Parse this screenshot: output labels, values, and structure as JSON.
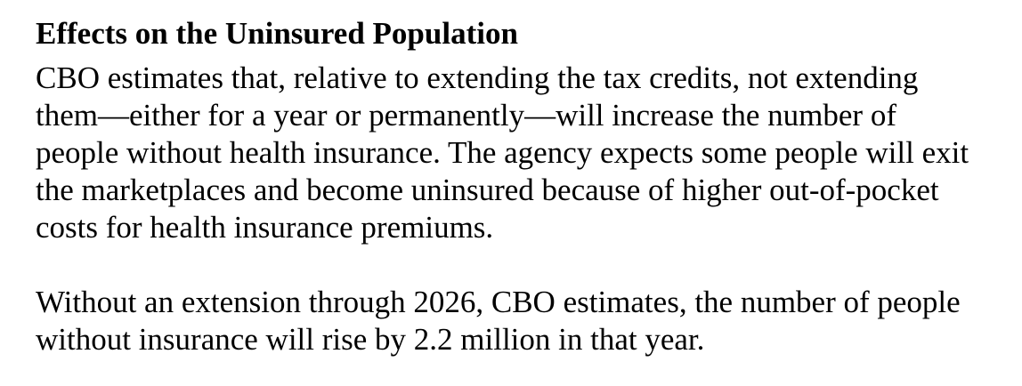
{
  "page": {
    "background_color": "#ffffff",
    "text_color": "#000000"
  },
  "document": {
    "heading": "Effects on the Uninsured Population",
    "paragraphs": [
      {
        "lines": [
          "CBO estimates that, relative to extending the tax credits, not extending",
          "them—either for a year or permanently—will increase the number of",
          "people without health insurance. The agency expects some people will exit",
          "the marketplaces and become uninsured because of higher out-of-pocket",
          "costs for health insurance premiums."
        ]
      },
      {
        "lines": [
          "Without an extension through 2026, CBO estimates, the number of people",
          "without insurance will rise by 2.2 million in that year."
        ]
      }
    ]
  }
}
